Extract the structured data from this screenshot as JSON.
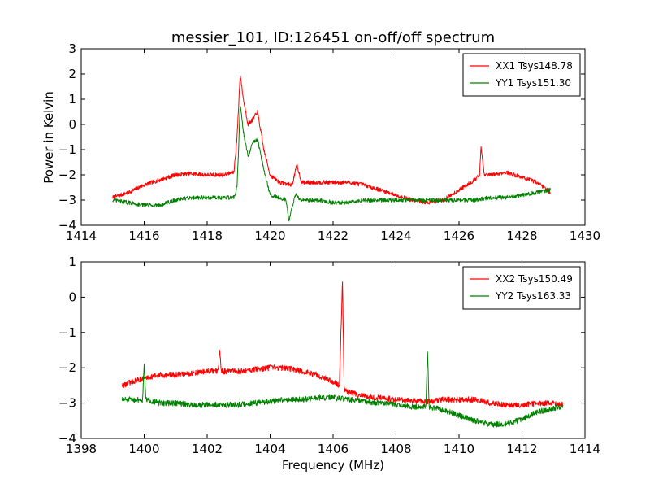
{
  "figure": {
    "title": "messier_101, ID:126451 on-off/off spectrum",
    "ylabel": "Power in Kelvin",
    "xlabel": "Frequency (MHz)"
  },
  "chart_data": [
    {
      "type": "line",
      "title": "messier_101, ID:126451 on-off/off spectrum",
      "ylabel": "Power in Kelvin",
      "xlabel": "",
      "xlim": [
        1414,
        1430
      ],
      "ylim": [
        -4,
        3
      ],
      "xticks": [
        1414,
        1416,
        1418,
        1420,
        1422,
        1424,
        1426,
        1428,
        1430
      ],
      "yticks": [
        -4,
        -3,
        -2,
        -1,
        0,
        1,
        2,
        3
      ],
      "grid": false,
      "legend_position": "top-right",
      "series": [
        {
          "name": "XX1 Tsys148.78",
          "color": "#ff0000",
          "x": [
            1415.0,
            1415.5,
            1416.0,
            1416.5,
            1417.0,
            1417.5,
            1418.0,
            1418.5,
            1418.85,
            1418.95,
            1419.05,
            1419.15,
            1419.3,
            1419.45,
            1419.6,
            1419.8,
            1420.0,
            1420.3,
            1420.7,
            1420.85,
            1421.0,
            1421.5,
            1422.0,
            1422.5,
            1423.0,
            1423.5,
            1424.0,
            1424.5,
            1425.0,
            1425.5,
            1426.0,
            1426.5,
            1426.65,
            1426.7,
            1426.8,
            1427.0,
            1427.5,
            1428.0,
            1428.5,
            1428.9
          ],
          "y": [
            -2.9,
            -2.7,
            -2.4,
            -2.2,
            -2.0,
            -1.95,
            -2.0,
            -2.0,
            -1.9,
            -0.5,
            2.0,
            1.0,
            0.0,
            0.2,
            0.5,
            -1.0,
            -2.0,
            -2.3,
            -2.4,
            -1.6,
            -2.3,
            -2.3,
            -2.3,
            -2.3,
            -2.4,
            -2.6,
            -2.8,
            -3.0,
            -3.1,
            -3.0,
            -2.6,
            -2.2,
            -2.0,
            -0.9,
            -2.0,
            -2.0,
            -1.9,
            -2.1,
            -2.3,
            -2.7
          ]
        },
        {
          "name": "YY1 Tsys151.30",
          "color": "#008000",
          "x": [
            1415.0,
            1415.5,
            1416.0,
            1416.5,
            1417.0,
            1417.5,
            1418.0,
            1418.5,
            1418.85,
            1418.95,
            1419.05,
            1419.15,
            1419.3,
            1419.45,
            1419.6,
            1419.8,
            1420.0,
            1420.3,
            1420.5,
            1420.6,
            1420.8,
            1421.0,
            1421.5,
            1422.0,
            1422.5,
            1423.0,
            1423.5,
            1424.0,
            1424.5,
            1425.0,
            1425.5,
            1426.0,
            1426.5,
            1427.0,
            1427.5,
            1428.0,
            1428.5,
            1428.9
          ],
          "y": [
            -3.0,
            -3.1,
            -3.2,
            -3.2,
            -3.0,
            -2.9,
            -2.9,
            -2.9,
            -2.9,
            -2.5,
            0.8,
            -0.3,
            -1.3,
            -0.7,
            -0.6,
            -1.8,
            -2.8,
            -2.9,
            -3.0,
            -3.8,
            -2.8,
            -3.0,
            -3.0,
            -3.1,
            -3.1,
            -3.0,
            -3.0,
            -3.0,
            -3.0,
            -3.0,
            -3.0,
            -3.0,
            -3.0,
            -2.9,
            -2.9,
            -2.8,
            -2.7,
            -2.6
          ]
        }
      ]
    },
    {
      "type": "line",
      "title": "",
      "ylabel": "",
      "xlabel": "Frequency (MHz)",
      "xlim": [
        1398,
        1414
      ],
      "ylim": [
        -4,
        1
      ],
      "xticks": [
        1398,
        1400,
        1402,
        1404,
        1406,
        1408,
        1410,
        1412,
        1414
      ],
      "yticks": [
        -4,
        -3,
        -2,
        -1,
        0,
        1
      ],
      "grid": false,
      "legend_position": "top-right",
      "series": [
        {
          "name": "XX2 Tsys150.49",
          "color": "#ff0000",
          "x": [
            1399.3,
            1399.6,
            1400.0,
            1400.5,
            1401.0,
            1401.5,
            1402.0,
            1402.35,
            1402.4,
            1402.45,
            1403.0,
            1403.5,
            1404.0,
            1404.5,
            1405.0,
            1405.5,
            1406.0,
            1406.2,
            1406.3,
            1406.35,
            1406.5,
            1407.0,
            1407.5,
            1408.0,
            1408.5,
            1409.0,
            1409.5,
            1410.0,
            1410.5,
            1411.0,
            1411.5,
            1412.0,
            1412.5,
            1413.0,
            1413.3
          ],
          "y": [
            -2.5,
            -2.4,
            -2.3,
            -2.2,
            -2.2,
            -2.15,
            -2.1,
            -2.1,
            -1.5,
            -2.1,
            -2.1,
            -2.05,
            -2.0,
            -2.0,
            -2.1,
            -2.2,
            -2.4,
            -2.5,
            0.5,
            -2.6,
            -2.7,
            -2.8,
            -2.85,
            -2.9,
            -2.95,
            -2.95,
            -2.9,
            -2.9,
            -2.9,
            -3.0,
            -3.05,
            -3.05,
            -3.0,
            -3.0,
            -3.05
          ]
        },
        {
          "name": "YY2 Tsys163.33",
          "color": "#008000",
          "x": [
            1399.3,
            1399.6,
            1399.95,
            1400.0,
            1400.05,
            1400.5,
            1401.0,
            1401.5,
            1402.0,
            1402.5,
            1403.0,
            1403.5,
            1404.0,
            1404.5,
            1405.0,
            1405.5,
            1406.0,
            1406.5,
            1407.0,
            1407.5,
            1408.0,
            1408.5,
            1408.95,
            1409.0,
            1409.05,
            1409.5,
            1410.0,
            1410.5,
            1411.0,
            1411.5,
            1412.0,
            1412.5,
            1413.0,
            1413.3
          ],
          "y": [
            -2.9,
            -2.9,
            -2.9,
            -1.85,
            -2.9,
            -3.0,
            -3.0,
            -3.05,
            -3.05,
            -3.05,
            -3.05,
            -3.0,
            -2.95,
            -2.9,
            -2.9,
            -2.85,
            -2.85,
            -2.9,
            -2.95,
            -3.0,
            -3.05,
            -3.1,
            -3.1,
            -1.5,
            -3.1,
            -3.2,
            -3.35,
            -3.5,
            -3.6,
            -3.6,
            -3.45,
            -3.25,
            -3.15,
            -3.1
          ]
        }
      ]
    }
  ]
}
